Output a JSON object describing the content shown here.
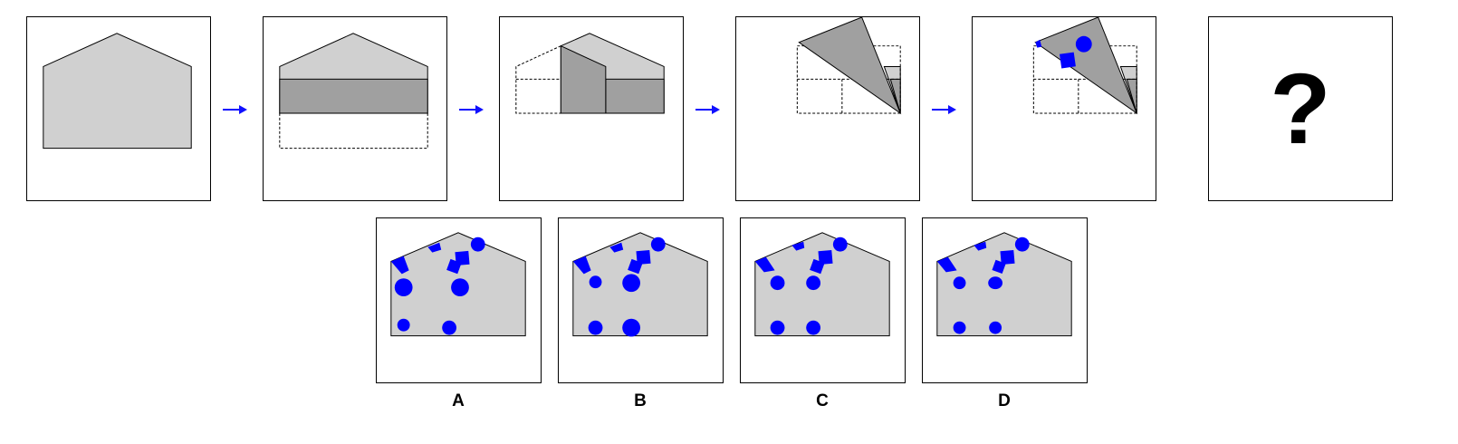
{
  "colors": {
    "paper": "#d0d0d0",
    "folded_flap": "#a0a0a0",
    "outline": "#000000",
    "arrow": "#1010ff",
    "punch": "#0000ff"
  },
  "sequence": {
    "steps": [
      "unfolded-paper",
      "fold-bottom-up",
      "fold-left-over",
      "fold-diagonal",
      "punch-holes"
    ],
    "question_mark": "?"
  },
  "options": [
    {
      "label": "A"
    },
    {
      "label": "B"
    },
    {
      "label": "C"
    },
    {
      "label": "D"
    }
  ]
}
